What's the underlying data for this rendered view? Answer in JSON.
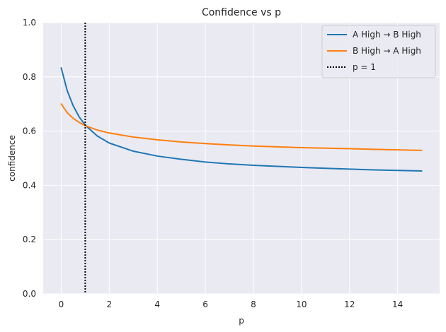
{
  "chart_data": {
    "type": "line",
    "title": "Confidence vs p",
    "xlabel": "p",
    "ylabel": "confidence",
    "xlim": [
      -0.75,
      15.75
    ],
    "ylim": [
      0,
      1
    ],
    "xticks": [
      0,
      2,
      4,
      6,
      8,
      10,
      12,
      14
    ],
    "yticks": [
      0.0,
      0.2,
      0.4,
      0.6,
      0.8,
      1.0
    ],
    "xtick_labels": [
      "0",
      "2",
      "4",
      "6",
      "8",
      "10",
      "12",
      "14"
    ],
    "ytick_labels": [
      "0.0",
      "0.2",
      "0.4",
      "0.6",
      "0.8",
      "1.0"
    ],
    "grid": true,
    "legend_position": "top-right",
    "background": "#eaeaf2",
    "series": [
      {
        "name": "A High → B High",
        "color": "#1f77b4",
        "style": "solid",
        "x": [
          0,
          0.25,
          0.5,
          0.75,
          1,
          1.5,
          2,
          3,
          4,
          5,
          6,
          7,
          8,
          9,
          10,
          11,
          12,
          13,
          14,
          15
        ],
        "y": [
          0.833,
          0.749,
          0.693,
          0.652,
          0.622,
          0.582,
          0.556,
          0.526,
          0.508,
          0.496,
          0.486,
          0.479,
          0.474,
          0.47,
          0.466,
          0.463,
          0.46,
          0.457,
          0.455,
          0.453
        ]
      },
      {
        "name": "B High → A High",
        "color": "#ff7f0e",
        "style": "solid",
        "x": [
          0,
          0.25,
          0.5,
          0.75,
          1,
          1.5,
          2,
          3,
          4,
          5,
          6,
          7,
          8,
          9,
          10,
          11,
          12,
          13,
          14,
          15
        ],
        "y": [
          0.7,
          0.668,
          0.647,
          0.632,
          0.62,
          0.604,
          0.593,
          0.578,
          0.568,
          0.56,
          0.554,
          0.549,
          0.545,
          0.542,
          0.539,
          0.537,
          0.535,
          0.533,
          0.531,
          0.529
        ]
      }
    ],
    "reference_lines": [
      {
        "name": "p = 1",
        "orientation": "vertical",
        "x": 1,
        "color": "#000000",
        "style": "dotted"
      }
    ]
  }
}
